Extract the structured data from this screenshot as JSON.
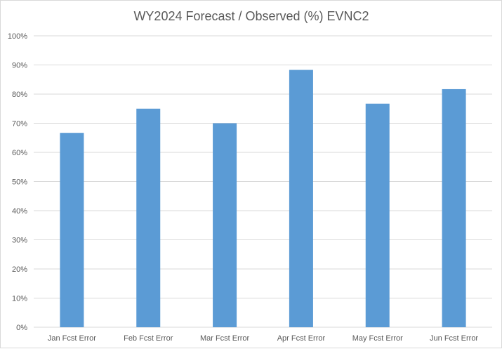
{
  "chart_data": {
    "type": "bar",
    "title": "WY2024 Forecast / Observed (%) EVNC2",
    "xlabel": "",
    "ylabel": "",
    "categories": [
      "Jan Fcst Error",
      "Feb Fcst Error",
      "Mar Fcst Error",
      "Apr Fcst Error",
      "May Fcst Error",
      "Jun Fcst Error"
    ],
    "values": [
      66.7,
      75.0,
      70.0,
      88.3,
      76.7,
      81.7
    ],
    "ylim": [
      0,
      100
    ],
    "yticks": [
      "0%",
      "10%",
      "20%",
      "30%",
      "40%",
      "50%",
      "60%",
      "70%",
      "80%",
      "90%",
      "100%"
    ],
    "grid": true,
    "legend": "none",
    "colors": {
      "bar": "#5B9BD5",
      "grid": "#d9d9d9",
      "text": "#595959"
    }
  }
}
